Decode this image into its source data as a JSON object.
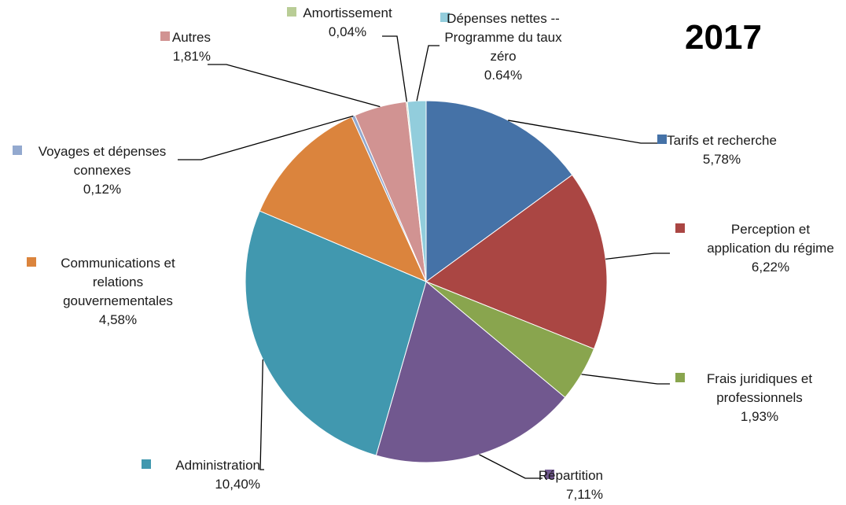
{
  "chart_data": {
    "type": "pie",
    "title": "2017",
    "legend": "labels beside slices",
    "slices": [
      {
        "lines": [
          "Tarifs et recherche"
        ],
        "pct": "5,78%",
        "value": 5.78,
        "color": "#4572A7"
      },
      {
        "lines": [
          "Perception et",
          "application du régime"
        ],
        "pct": "6,22%",
        "value": 6.22,
        "color": "#AA4643"
      },
      {
        "lines": [
          "Frais juridiques et",
          "professionnels"
        ],
        "pct": "1,93%",
        "value": 1.93,
        "color": "#89A54E"
      },
      {
        "lines": [
          "Répartition"
        ],
        "pct": "7,11%",
        "value": 7.11,
        "color": "#71588F"
      },
      {
        "lines": [
          "Administration"
        ],
        "pct": "10,40%",
        "value": 10.4,
        "color": "#4198AF"
      },
      {
        "lines": [
          "Communications et",
          "relations",
          "gouvernementales"
        ],
        "pct": "4,58%",
        "value": 4.58,
        "color": "#DB843D"
      },
      {
        "lines": [
          "Voyages et dépenses",
          "connexes"
        ],
        "pct": "0,12%",
        "value": 0.12,
        "color": "#93A9CF"
      },
      {
        "lines": [
          "Autres"
        ],
        "pct": "1,81%",
        "value": 1.81,
        "color": "#D19392"
      },
      {
        "lines": [
          "Amortissement"
        ],
        "pct": "0,04%",
        "value": 0.04,
        "color": "#B9CD96"
      },
      {
        "lines": [
          "Dépenses nettes --",
          "Programme du taux",
          "zéro"
        ],
        "pct": "0.64%",
        "value": 0.64,
        "color": "#92CDDC"
      }
    ]
  }
}
